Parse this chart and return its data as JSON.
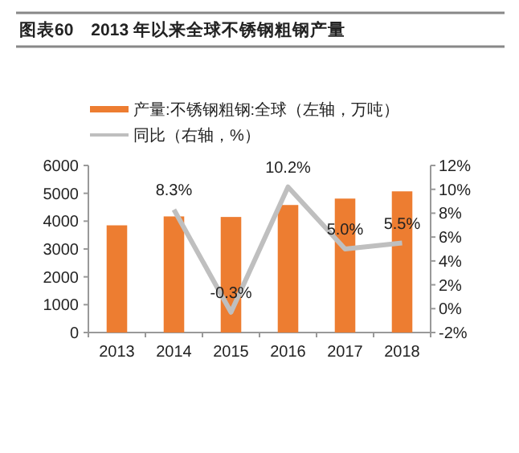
{
  "chart_data": {
    "type": "bar",
    "title": "图表60　2013 年以来全球不锈钢粗钢产量",
    "categories": [
      "2013",
      "2014",
      "2015",
      "2016",
      "2017",
      "2018"
    ],
    "series": [
      {
        "name": "产量:不锈钢粗钢:全球（左轴，万吨）",
        "color": "#ed7d31",
        "values": [
          3850,
          4170,
          4150,
          4580,
          4810,
          5070
        ]
      },
      {
        "name": "同比（右轴，%）",
        "type": "line",
        "axis": "y2",
        "color": "#bfbfbf",
        "values": [
          null,
          8.3,
          -0.3,
          10.2,
          5.0,
          5.5
        ],
        "value_labels": [
          null,
          "8.3%",
          "-0.3%",
          "10.2%",
          "5.0%",
          "5.5%"
        ]
      }
    ],
    "ylim": [
      0,
      6000
    ],
    "yticks": [
      0,
      1000,
      2000,
      3000,
      4000,
      5000,
      6000
    ],
    "y2lim": [
      -2,
      12
    ],
    "y2ticks": [
      {
        "value": -2,
        "label": "-2%"
      },
      {
        "value": 0,
        "label": "0%"
      },
      {
        "value": 2,
        "label": "2%"
      },
      {
        "value": 4,
        "label": "4%"
      },
      {
        "value": 6,
        "label": "6%"
      },
      {
        "value": 8,
        "label": "8%"
      },
      {
        "value": 10,
        "label": "10%"
      },
      {
        "value": 12,
        "label": "12%"
      }
    ],
    "legend": "top",
    "grid": false
  }
}
